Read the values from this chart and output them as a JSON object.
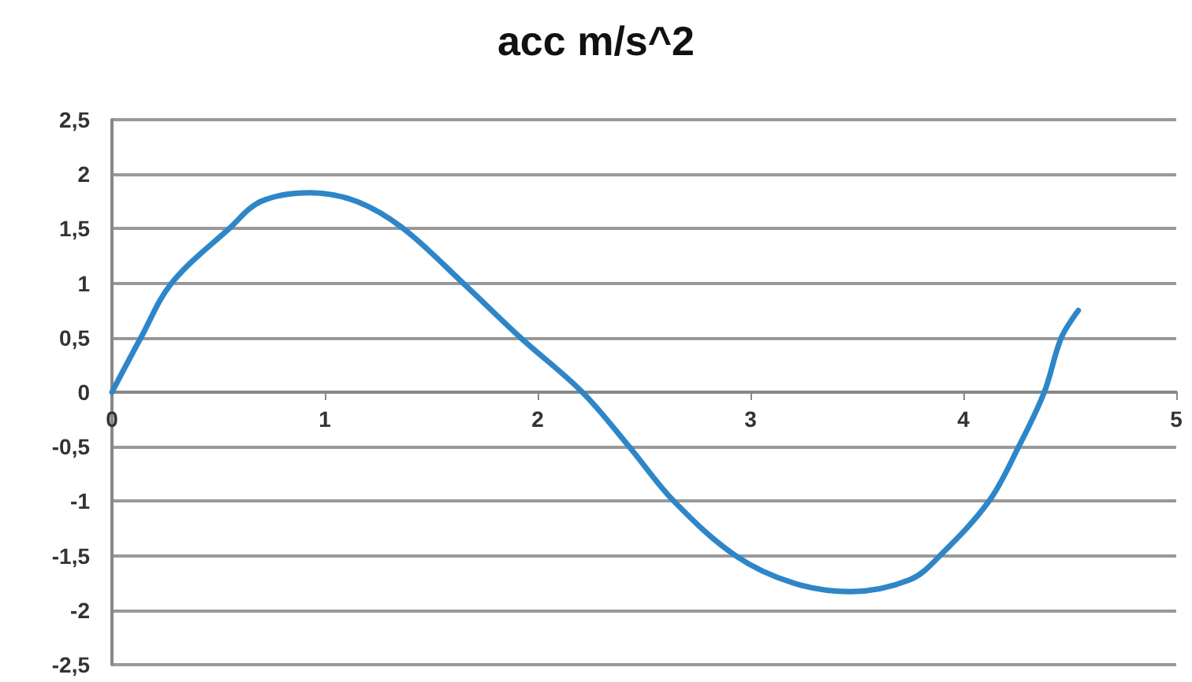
{
  "chart_data": {
    "type": "line",
    "title": "acc m/s^2",
    "series": [
      {
        "color": "#2e86c8",
        "x": [
          0,
          0.136,
          0.28,
          0.55,
          0.7,
          0.93,
          1.15,
          1.37,
          1.65,
          1.92,
          2.21,
          2.43,
          2.64,
          2.93,
          3.2,
          3.47,
          3.75,
          3.89,
          4.12,
          4.26,
          4.38,
          4.46,
          4.54
        ],
        "values": [
          0,
          0.5,
          1,
          1.5,
          1.75,
          1.83,
          1.75,
          1.5,
          1,
          0.5,
          0,
          -0.5,
          -1,
          -1.5,
          -1.75,
          -1.83,
          -1.72,
          -1.5,
          -1,
          -0.5,
          0,
          0.5,
          0.75
        ]
      }
    ],
    "xlim": [
      0,
      5
    ],
    "xticks": [
      0,
      1,
      2,
      3,
      4,
      5
    ],
    "ylim": [
      -2.5,
      2.5
    ],
    "yticks": [
      {
        "value": -2.5,
        "label": "-2,5"
      },
      -2,
      {
        "value": -1.5,
        "label": "-1,5"
      },
      -1,
      {
        "value": -0.5,
        "label": "-0,5"
      },
      0,
      {
        "value": 0.5,
        "label": "0,5"
      },
      1,
      {
        "value": 1.5,
        "label": "1,5"
      },
      2,
      {
        "value": 2.5,
        "label": "2,5"
      }
    ],
    "grid": "y",
    "marker": "none",
    "line_style": "solid"
  }
}
